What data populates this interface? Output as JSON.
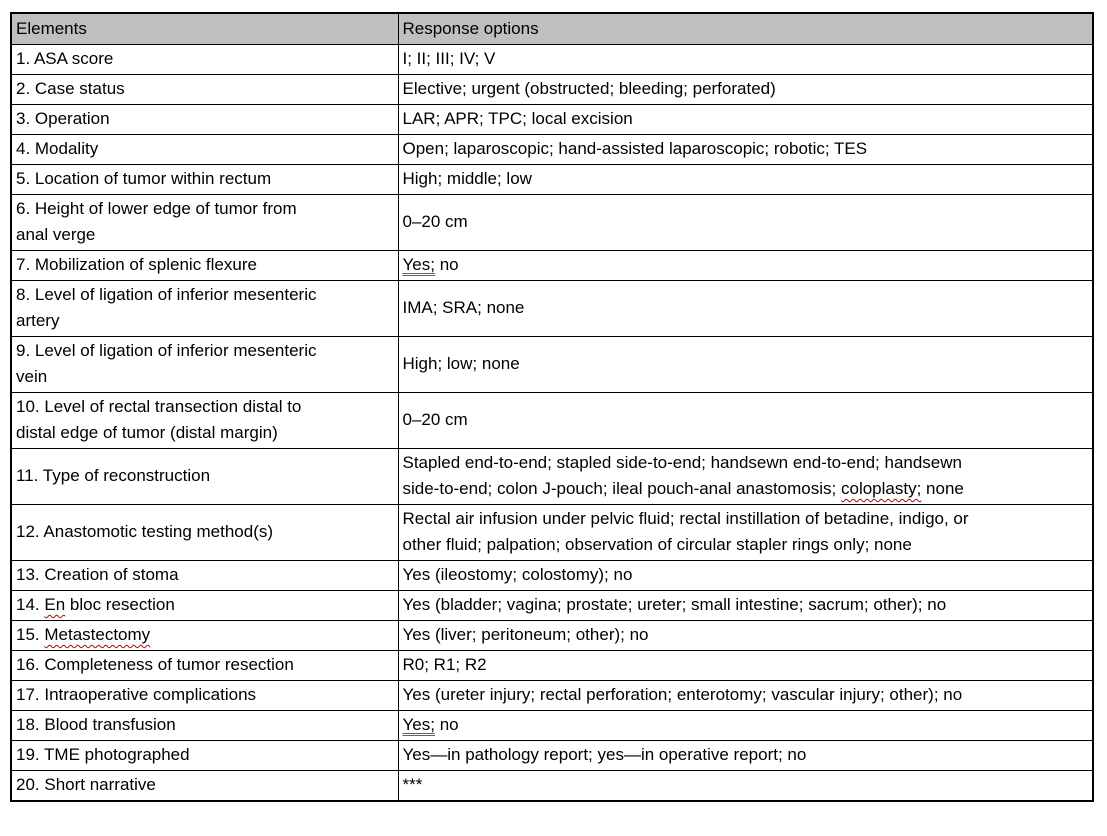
{
  "document": {
    "background": "#ffffff"
  },
  "table": {
    "columns": [
      {
        "label": "Elements"
      },
      {
        "label": "Response options"
      }
    ],
    "colors": {
      "header_bg": "#bfbfbf",
      "border": "#000000",
      "text": "#000000",
      "spell_underline": "#c00000",
      "grammar_underline": "#3265cb"
    },
    "rows": [
      {
        "element": [
          {
            "t": "1. ASA score"
          }
        ],
        "response": [
          {
            "t": "I; II; III; IV; V"
          }
        ]
      },
      {
        "element": [
          {
            "t": "2. Case status"
          }
        ],
        "response": [
          {
            "t": "Elective; urgent (obstructed; bleeding; perforated)"
          }
        ]
      },
      {
        "element": [
          {
            "t": "3. Operation"
          }
        ],
        "response": [
          {
            "t": "LAR; APR; TPC; local excision"
          }
        ]
      },
      {
        "element": [
          {
            "t": "4. Modality"
          }
        ],
        "response": [
          {
            "t": "Open; laparoscopic; hand-assisted laparoscopic; robotic; TES"
          }
        ]
      },
      {
        "element": [
          {
            "t": "5. Location of tumor within rectum"
          }
        ],
        "response": [
          {
            "t": "High; middle; low"
          }
        ]
      },
      {
        "element": [
          {
            "t": "6. Height of lower edge of tumor from\nanal verge"
          }
        ],
        "response": [
          {
            "t": "0–20 cm"
          }
        ]
      },
      {
        "element": [
          {
            "t": "7. Mobilization of splenic flexure"
          }
        ],
        "response": [
          {
            "t": "Yes;",
            "m": "grammar"
          },
          {
            "t": " no"
          }
        ]
      },
      {
        "element": [
          {
            "t": "8. Level of ligation of inferior mesenteric\nartery"
          }
        ],
        "response": [
          {
            "t": "IMA; SRA; none"
          }
        ]
      },
      {
        "element": [
          {
            "t": "9. Level of ligation of inferior mesenteric\nvein"
          }
        ],
        "response": [
          {
            "t": "High; low; none"
          }
        ]
      },
      {
        "element": [
          {
            "t": "10. Level of rectal transection distal to\ndistal edge of tumor (distal margin)"
          }
        ],
        "response": [
          {
            "t": "0–20 cm"
          }
        ]
      },
      {
        "element": [
          {
            "t": "11. Type of reconstruction"
          }
        ],
        "response": [
          {
            "t": "Stapled end-to-end; stapled side-to-end; handsewn end-to-end; handsewn\nside-to-end; colon J-pouch; ileal pouch-anal anastomosis; "
          },
          {
            "t": "coloplasty;",
            "m": "spell"
          },
          {
            "t": " none"
          }
        ]
      },
      {
        "element": [
          {
            "t": "12. Anastomotic testing method(s)"
          }
        ],
        "response": [
          {
            "t": "Rectal air infusion under pelvic fluid; rectal instillation of betadine, indigo, or\nother fluid; palpation; observation of circular stapler rings only; none"
          }
        ]
      },
      {
        "element": [
          {
            "t": "13. Creation of stoma"
          }
        ],
        "response": [
          {
            "t": "Yes (ileostomy; colostomy); no"
          }
        ]
      },
      {
        "element": [
          {
            "t": "14. "
          },
          {
            "t": "En",
            "m": "spell"
          },
          {
            "t": " bloc resection"
          }
        ],
        "response": [
          {
            "t": "Yes (bladder; vagina; prostate; ureter; small intestine; sacrum; other); no"
          }
        ]
      },
      {
        "element": [
          {
            "t": "15. "
          },
          {
            "t": "Metastectomy",
            "m": "spell"
          }
        ],
        "response": [
          {
            "t": "Yes (liver; peritoneum; other); no"
          }
        ]
      },
      {
        "element": [
          {
            "t": "16. Completeness of tumor resection"
          }
        ],
        "response": [
          {
            "t": "R0; R1; R2"
          }
        ]
      },
      {
        "element": [
          {
            "t": "17. Intraoperative complications"
          }
        ],
        "response": [
          {
            "t": "Yes (ureter injury; rectal perforation; enterotomy; vascular injury; other); no"
          }
        ]
      },
      {
        "element": [
          {
            "t": "18. Blood transfusion"
          }
        ],
        "response": [
          {
            "t": "Yes;",
            "m": "grammar"
          },
          {
            "t": " no"
          }
        ]
      },
      {
        "element": [
          {
            "t": "19. TME photographed"
          }
        ],
        "response": [
          {
            "t": "Yes—in pathology report; yes—in operative report; no"
          }
        ]
      },
      {
        "element": [
          {
            "t": "20. Short narrative"
          }
        ],
        "response": [
          {
            "t": "***"
          }
        ]
      }
    ]
  }
}
